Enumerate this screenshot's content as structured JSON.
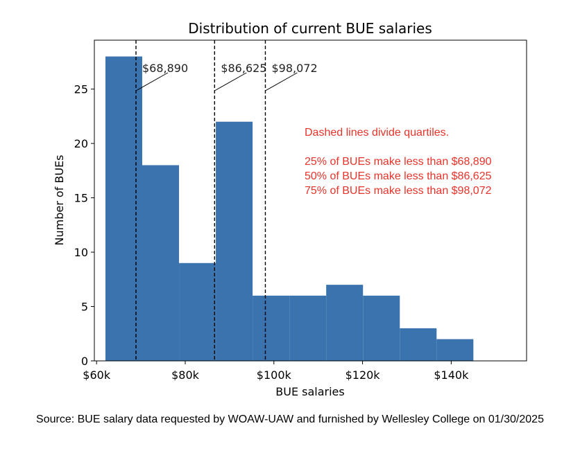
{
  "chart_data": {
    "type": "bar",
    "subtype": "histogram",
    "title": "Distribution of current BUE salaries",
    "xlabel": "BUE salaries",
    "ylabel": "Number of BUEs",
    "xlim": [
      59500,
      157000
    ],
    "ylim": [
      0,
      29.5
    ],
    "bin_edges": [
      62000,
      70300,
      78600,
      86900,
      95200,
      103500,
      111800,
      120100,
      128400,
      136700,
      145000
    ],
    "values": [
      28,
      18,
      9,
      22,
      6,
      6,
      7,
      6,
      3,
      2
    ],
    "bar_color": "#3a73ad",
    "x_ticks": [
      {
        "value": 60000,
        "label": "$60k"
      },
      {
        "value": 80000,
        "label": "$80k"
      },
      {
        "value": 100000,
        "label": "$100k"
      },
      {
        "value": 120000,
        "label": "$120k"
      },
      {
        "value": 140000,
        "label": "$140k"
      }
    ],
    "y_ticks": [
      {
        "value": 0,
        "label": "0"
      },
      {
        "value": 5,
        "label": "5"
      },
      {
        "value": 10,
        "label": "10"
      },
      {
        "value": 15,
        "label": "15"
      },
      {
        "value": 20,
        "label": "20"
      },
      {
        "value": 25,
        "label": "25"
      }
    ],
    "quartiles": [
      {
        "value": 68890,
        "label": "$68,890"
      },
      {
        "value": 86625,
        "label": "$86,625"
      },
      {
        "value": 98072,
        "label": "$98,072"
      }
    ],
    "annotation": {
      "color": "#e8332a",
      "lines": [
        "Dashed lines divide quartiles.",
        "",
        "25% of BUEs make less than $68,890",
        "50% of BUEs make less than $86,625",
        "75% of BUEs make less than $98,072"
      ]
    }
  },
  "source_note": "Source: BUE salary data requested by WOAW-UAW and furnished by Wellesley College on 01/30/2025"
}
